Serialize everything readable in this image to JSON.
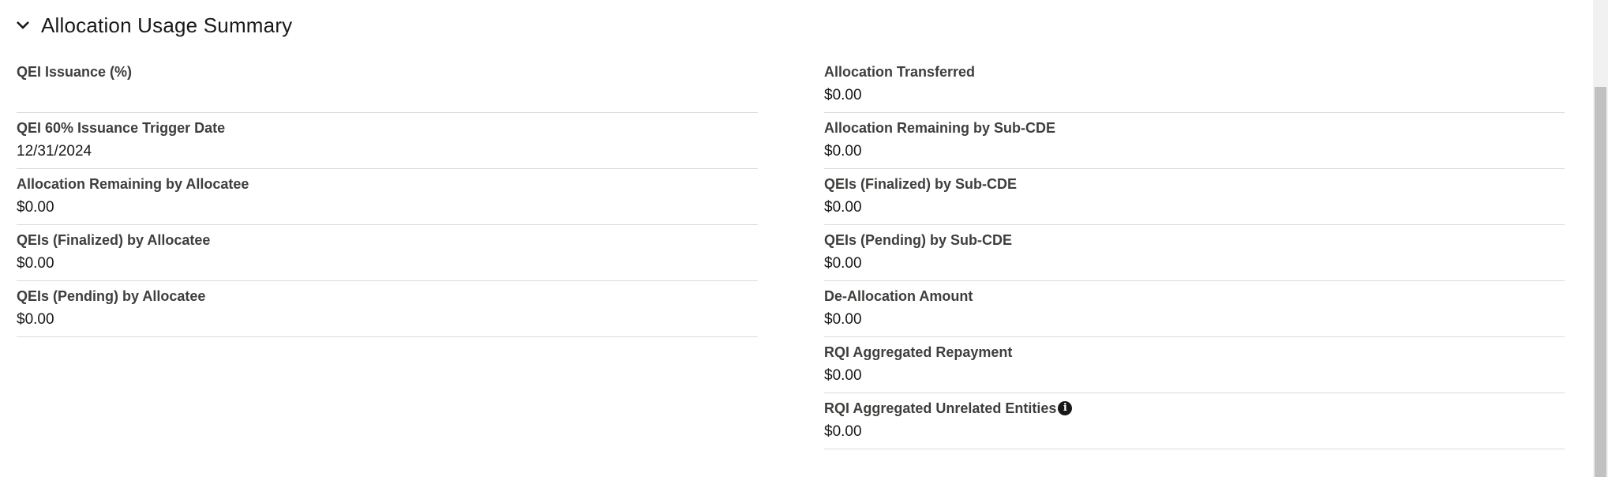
{
  "section": {
    "title": "Allocation Usage Summary",
    "expanded": true,
    "icon": "chevron-down-icon"
  },
  "left_fields": [
    {
      "label": "QEI Issuance (%)",
      "value": ""
    },
    {
      "label": "QEI 60% Issuance Trigger Date",
      "value": "12/31/2024"
    },
    {
      "label": "Allocation Remaining by Allocatee",
      "value": "$0.00"
    },
    {
      "label": "QEIs (Finalized) by Allocatee",
      "value": "$0.00"
    },
    {
      "label": "QEIs (Pending) by Allocatee",
      "value": "$0.00"
    }
  ],
  "right_fields": [
    {
      "label": "Allocation Transferred",
      "value": "$0.00"
    },
    {
      "label": "Allocation Remaining by Sub-CDE",
      "value": "$0.00"
    },
    {
      "label": "QEIs (Finalized) by Sub-CDE",
      "value": "$0.00"
    },
    {
      "label": "QEIs (Pending) by Sub-CDE",
      "value": "$0.00"
    },
    {
      "label": "De-Allocation Amount",
      "value": "$0.00"
    },
    {
      "label": "RQI Aggregated Repayment",
      "value": "$0.00"
    },
    {
      "label": "RQI Aggregated Unrelated Entities",
      "value": "$0.00",
      "icon": "info-icon",
      "icon_glyph": "i"
    }
  ]
}
